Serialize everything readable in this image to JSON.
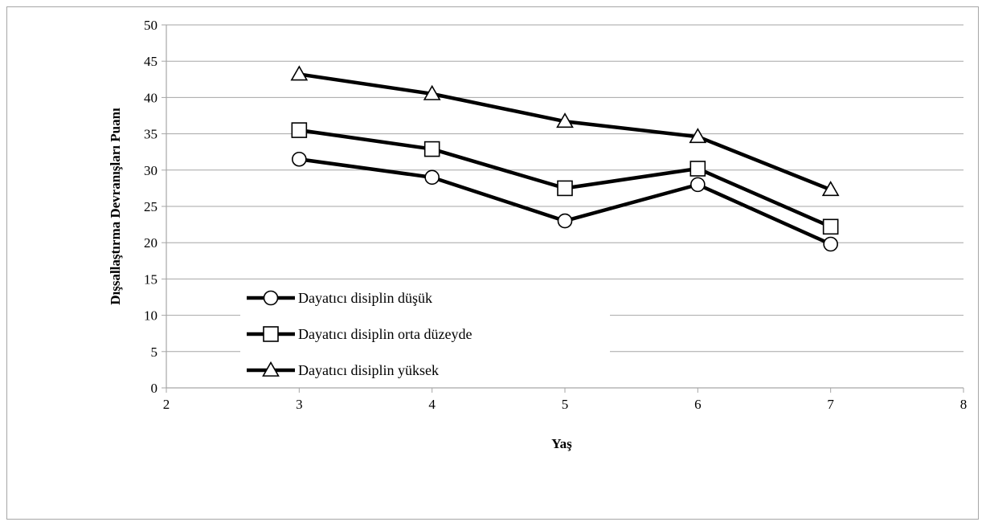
{
  "chart_data": {
    "type": "line",
    "title": "",
    "xlabel": "Yaş",
    "ylabel": "Dışsallaştırma Devranışları Puanı",
    "xlim": [
      2,
      8
    ],
    "ylim": [
      0,
      50
    ],
    "x_ticks": [
      2,
      3,
      4,
      5,
      6,
      7,
      8
    ],
    "y_ticks": [
      0,
      5,
      10,
      15,
      20,
      25,
      30,
      35,
      40,
      45,
      50
    ],
    "grid": "horizontal",
    "legend_position": "bottom-left",
    "line_color": "#000000",
    "grid_color": "#a6a6a6",
    "series": [
      {
        "name": "Dayatıcı disiplin düşük",
        "marker": "circle",
        "x": [
          3,
          4,
          5,
          6,
          7
        ],
        "values": [
          31.5,
          29,
          23,
          28,
          19.8
        ]
      },
      {
        "name": "Dayatıcı disiplin orta düzeyde",
        "marker": "square",
        "x": [
          3,
          4,
          5,
          6,
          7
        ],
        "values": [
          35.5,
          32.9,
          27.5,
          30.2,
          22.2
        ]
      },
      {
        "name": "Dayatıcı disiplin yüksek",
        "marker": "triangle",
        "x": [
          3,
          4,
          5,
          6,
          7
        ],
        "values": [
          43.2,
          40.5,
          36.7,
          34.6,
          27.3
        ]
      }
    ]
  }
}
